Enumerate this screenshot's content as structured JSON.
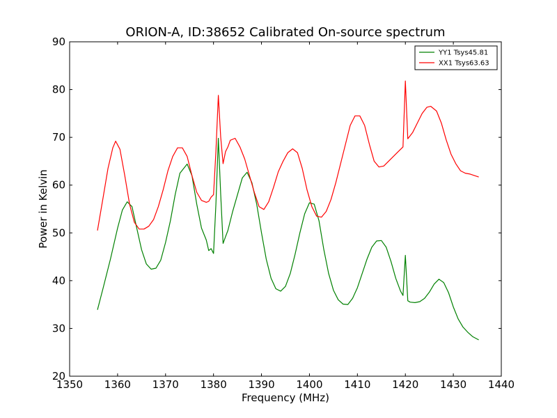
{
  "chart_data": {
    "type": "line",
    "title": "ORION-A, ID:38652 Calibrated On-source spectrum",
    "xlabel": "Frequency (MHz)",
    "ylabel": "Power in Kelvin",
    "xlim": [
      1350,
      1440
    ],
    "ylim": [
      20,
      90
    ],
    "xticks": [
      1350,
      1360,
      1370,
      1380,
      1390,
      1400,
      1410,
      1420,
      1430,
      1440
    ],
    "yticks": [
      20,
      30,
      40,
      50,
      60,
      70,
      80,
      90
    ],
    "grid": false,
    "legend_position": "top-right",
    "series": [
      {
        "name": "YY1 Tsys45.81",
        "color": "#008000",
        "points": [
          [
            1355.8,
            33.9
          ],
          [
            1357.0,
            38.5
          ],
          [
            1358.5,
            44.5
          ],
          [
            1360.0,
            51.0
          ],
          [
            1361.0,
            54.8
          ],
          [
            1362.0,
            56.5
          ],
          [
            1363.0,
            55.5
          ],
          [
            1364.0,
            51.0
          ],
          [
            1365.0,
            46.5
          ],
          [
            1366.0,
            43.5
          ],
          [
            1367.0,
            42.4
          ],
          [
            1368.0,
            42.6
          ],
          [
            1369.0,
            44.3
          ],
          [
            1370.0,
            48.0
          ],
          [
            1371.0,
            52.5
          ],
          [
            1372.0,
            58.0
          ],
          [
            1373.0,
            62.5
          ],
          [
            1374.5,
            64.4
          ],
          [
            1375.5,
            62.0
          ],
          [
            1376.5,
            56.0
          ],
          [
            1377.5,
            51.0
          ],
          [
            1378.5,
            48.5
          ],
          [
            1379.0,
            46.3
          ],
          [
            1379.5,
            46.7
          ],
          [
            1380.0,
            45.7
          ],
          [
            1380.5,
            56.0
          ],
          [
            1381.0,
            69.8
          ],
          [
            1381.5,
            58.0
          ],
          [
            1382.0,
            47.8
          ],
          [
            1382.5,
            49.2
          ],
          [
            1383.0,
            50.5
          ],
          [
            1384.0,
            54.5
          ],
          [
            1385.0,
            58.0
          ],
          [
            1386.0,
            61.5
          ],
          [
            1387.0,
            62.7
          ],
          [
            1388.0,
            60.5
          ],
          [
            1389.0,
            56.0
          ],
          [
            1390.0,
            50.0
          ],
          [
            1391.0,
            44.5
          ],
          [
            1392.0,
            40.5
          ],
          [
            1393.0,
            38.3
          ],
          [
            1394.0,
            37.8
          ],
          [
            1395.0,
            38.8
          ],
          [
            1396.0,
            41.5
          ],
          [
            1397.0,
            45.5
          ],
          [
            1398.0,
            50.0
          ],
          [
            1399.0,
            54.0
          ],
          [
            1400.0,
            56.3
          ],
          [
            1401.0,
            56.0
          ],
          [
            1402.0,
            52.5
          ],
          [
            1403.0,
            46.5
          ],
          [
            1404.0,
            41.5
          ],
          [
            1405.0,
            38.0
          ],
          [
            1406.0,
            36.0
          ],
          [
            1407.0,
            35.1
          ],
          [
            1408.0,
            35.0
          ],
          [
            1409.0,
            36.3
          ],
          [
            1410.0,
            38.5
          ],
          [
            1411.0,
            41.5
          ],
          [
            1412.0,
            44.5
          ],
          [
            1413.0,
            47.0
          ],
          [
            1414.0,
            48.3
          ],
          [
            1415.0,
            48.4
          ],
          [
            1416.0,
            47.0
          ],
          [
            1417.0,
            44.0
          ],
          [
            1418.0,
            40.5
          ],
          [
            1419.0,
            37.8
          ],
          [
            1419.5,
            36.9
          ],
          [
            1420.0,
            45.3
          ],
          [
            1420.5,
            35.8
          ],
          [
            1421.0,
            35.5
          ],
          [
            1422.0,
            35.4
          ],
          [
            1423.0,
            35.6
          ],
          [
            1424.0,
            36.3
          ],
          [
            1425.0,
            37.6
          ],
          [
            1426.0,
            39.3
          ],
          [
            1427.0,
            40.3
          ],
          [
            1428.0,
            39.6
          ],
          [
            1429.0,
            37.5
          ],
          [
            1430.0,
            34.5
          ],
          [
            1431.0,
            32.0
          ],
          [
            1432.0,
            30.3
          ],
          [
            1433.0,
            29.2
          ],
          [
            1434.0,
            28.3
          ],
          [
            1435.3,
            27.6
          ]
        ]
      },
      {
        "name": "XX1 Tsys63.63",
        "color": "#ff0000",
        "points": [
          [
            1355.8,
            50.5
          ],
          [
            1357.0,
            57.5
          ],
          [
            1358.0,
            63.5
          ],
          [
            1359.0,
            67.8
          ],
          [
            1359.6,
            69.2
          ],
          [
            1360.5,
            67.5
          ],
          [
            1361.5,
            62.0
          ],
          [
            1362.5,
            56.0
          ],
          [
            1363.5,
            52.2
          ],
          [
            1364.5,
            50.8
          ],
          [
            1365.5,
            50.8
          ],
          [
            1366.5,
            51.4
          ],
          [
            1367.5,
            52.8
          ],
          [
            1368.5,
            55.5
          ],
          [
            1369.5,
            59.0
          ],
          [
            1370.5,
            63.0
          ],
          [
            1371.5,
            66.0
          ],
          [
            1372.5,
            67.8
          ],
          [
            1373.5,
            67.8
          ],
          [
            1374.5,
            66.0
          ],
          [
            1375.5,
            62.0
          ],
          [
            1376.5,
            58.5
          ],
          [
            1377.5,
            56.8
          ],
          [
            1378.5,
            56.4
          ],
          [
            1379.0,
            56.6
          ],
          [
            1379.5,
            57.5
          ],
          [
            1380.0,
            58.0
          ],
          [
            1380.5,
            67.0
          ],
          [
            1381.0,
            78.8
          ],
          [
            1381.5,
            70.0
          ],
          [
            1382.0,
            64.5
          ],
          [
            1382.5,
            67.0
          ],
          [
            1383.0,
            68.0
          ],
          [
            1383.5,
            69.4
          ],
          [
            1384.5,
            69.8
          ],
          [
            1385.5,
            68.0
          ],
          [
            1386.5,
            65.5
          ],
          [
            1387.5,
            62.0
          ],
          [
            1388.5,
            58.5
          ],
          [
            1389.5,
            55.5
          ],
          [
            1390.5,
            54.9
          ],
          [
            1391.5,
            56.5
          ],
          [
            1392.5,
            59.5
          ],
          [
            1393.5,
            62.8
          ],
          [
            1394.5,
            65.0
          ],
          [
            1395.5,
            66.8
          ],
          [
            1396.5,
            67.6
          ],
          [
            1397.5,
            66.8
          ],
          [
            1398.5,
            63.5
          ],
          [
            1399.5,
            59.0
          ],
          [
            1400.5,
            55.5
          ],
          [
            1401.5,
            53.5
          ],
          [
            1402.5,
            53.3
          ],
          [
            1403.5,
            54.5
          ],
          [
            1404.5,
            57.0
          ],
          [
            1405.5,
            60.5
          ],
          [
            1406.5,
            64.5
          ],
          [
            1407.5,
            68.5
          ],
          [
            1408.5,
            72.5
          ],
          [
            1409.5,
            74.5
          ],
          [
            1410.5,
            74.5
          ],
          [
            1411.5,
            72.5
          ],
          [
            1412.5,
            68.5
          ],
          [
            1413.5,
            65.0
          ],
          [
            1414.5,
            63.8
          ],
          [
            1415.5,
            64.0
          ],
          [
            1416.5,
            65.0
          ],
          [
            1417.5,
            66.0
          ],
          [
            1418.5,
            67.0
          ],
          [
            1419.5,
            68.0
          ],
          [
            1420.0,
            81.8
          ],
          [
            1420.5,
            69.7
          ],
          [
            1421.5,
            71.0
          ],
          [
            1422.5,
            73.0
          ],
          [
            1423.5,
            75.0
          ],
          [
            1424.5,
            76.3
          ],
          [
            1425.3,
            76.5
          ],
          [
            1426.5,
            75.5
          ],
          [
            1427.5,
            73.0
          ],
          [
            1428.5,
            69.5
          ],
          [
            1429.5,
            66.5
          ],
          [
            1430.5,
            64.5
          ],
          [
            1431.5,
            63.0
          ],
          [
            1432.5,
            62.5
          ],
          [
            1433.5,
            62.3
          ],
          [
            1435.3,
            61.7
          ]
        ]
      }
    ]
  }
}
